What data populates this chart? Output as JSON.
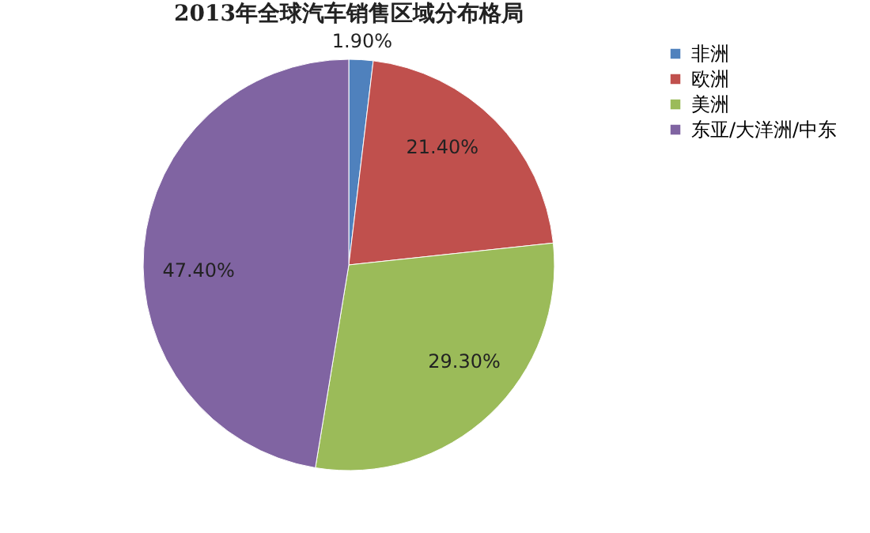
{
  "chart_data": {
    "type": "pie",
    "title": "2013年全球汽车销售区域分布格局",
    "categories": [
      "非洲",
      "欧洲",
      "美洲",
      "东亚/大洋洲/中东"
    ],
    "values": [
      1.9,
      21.4,
      29.3,
      47.4
    ],
    "colors": [
      "#4f81bd",
      "#c0504d",
      "#9bbb59",
      "#8064a2"
    ],
    "value_labels": [
      "1.90%",
      "21.40%",
      "29.30%",
      "47.40%"
    ],
    "legend": "right"
  }
}
